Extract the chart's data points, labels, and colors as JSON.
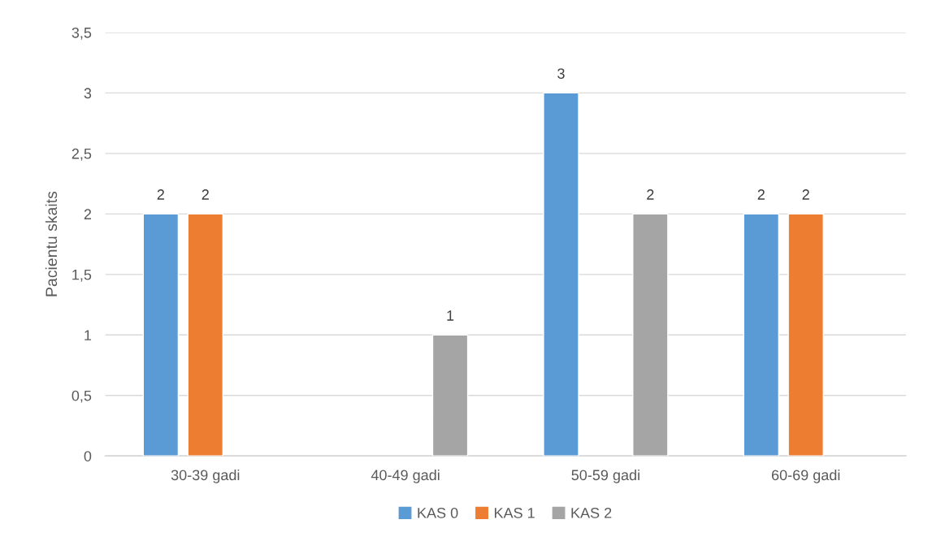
{
  "chart_data": {
    "type": "bar",
    "ylabel": "Pacientu skaits",
    "categories": [
      "30-39 gadi",
      "40-49 gadi",
      "50-59 gadi",
      "60-69 gadi"
    ],
    "series": [
      {
        "name": "KAS 0",
        "color": "#5b9bd5",
        "values": [
          2,
          null,
          3,
          2
        ]
      },
      {
        "name": "KAS 1",
        "color": "#ed7d31",
        "values": [
          2,
          null,
          null,
          2
        ]
      },
      {
        "name": "KAS 2",
        "color": "#a5a5a5",
        "values": [
          null,
          1,
          2,
          null
        ]
      }
    ],
    "ylim": [
      0,
      3.5
    ],
    "yticks": [
      0,
      {
        "value": 0.5,
        "label": "0,5"
      },
      1,
      {
        "value": 1.5,
        "label": "1,5"
      },
      2,
      {
        "value": 2.5,
        "label": "2,5"
      },
      3,
      {
        "value": 3.5,
        "label": "3,5"
      }
    ],
    "grid": "y",
    "legend": "bottom",
    "data_labels": true
  }
}
